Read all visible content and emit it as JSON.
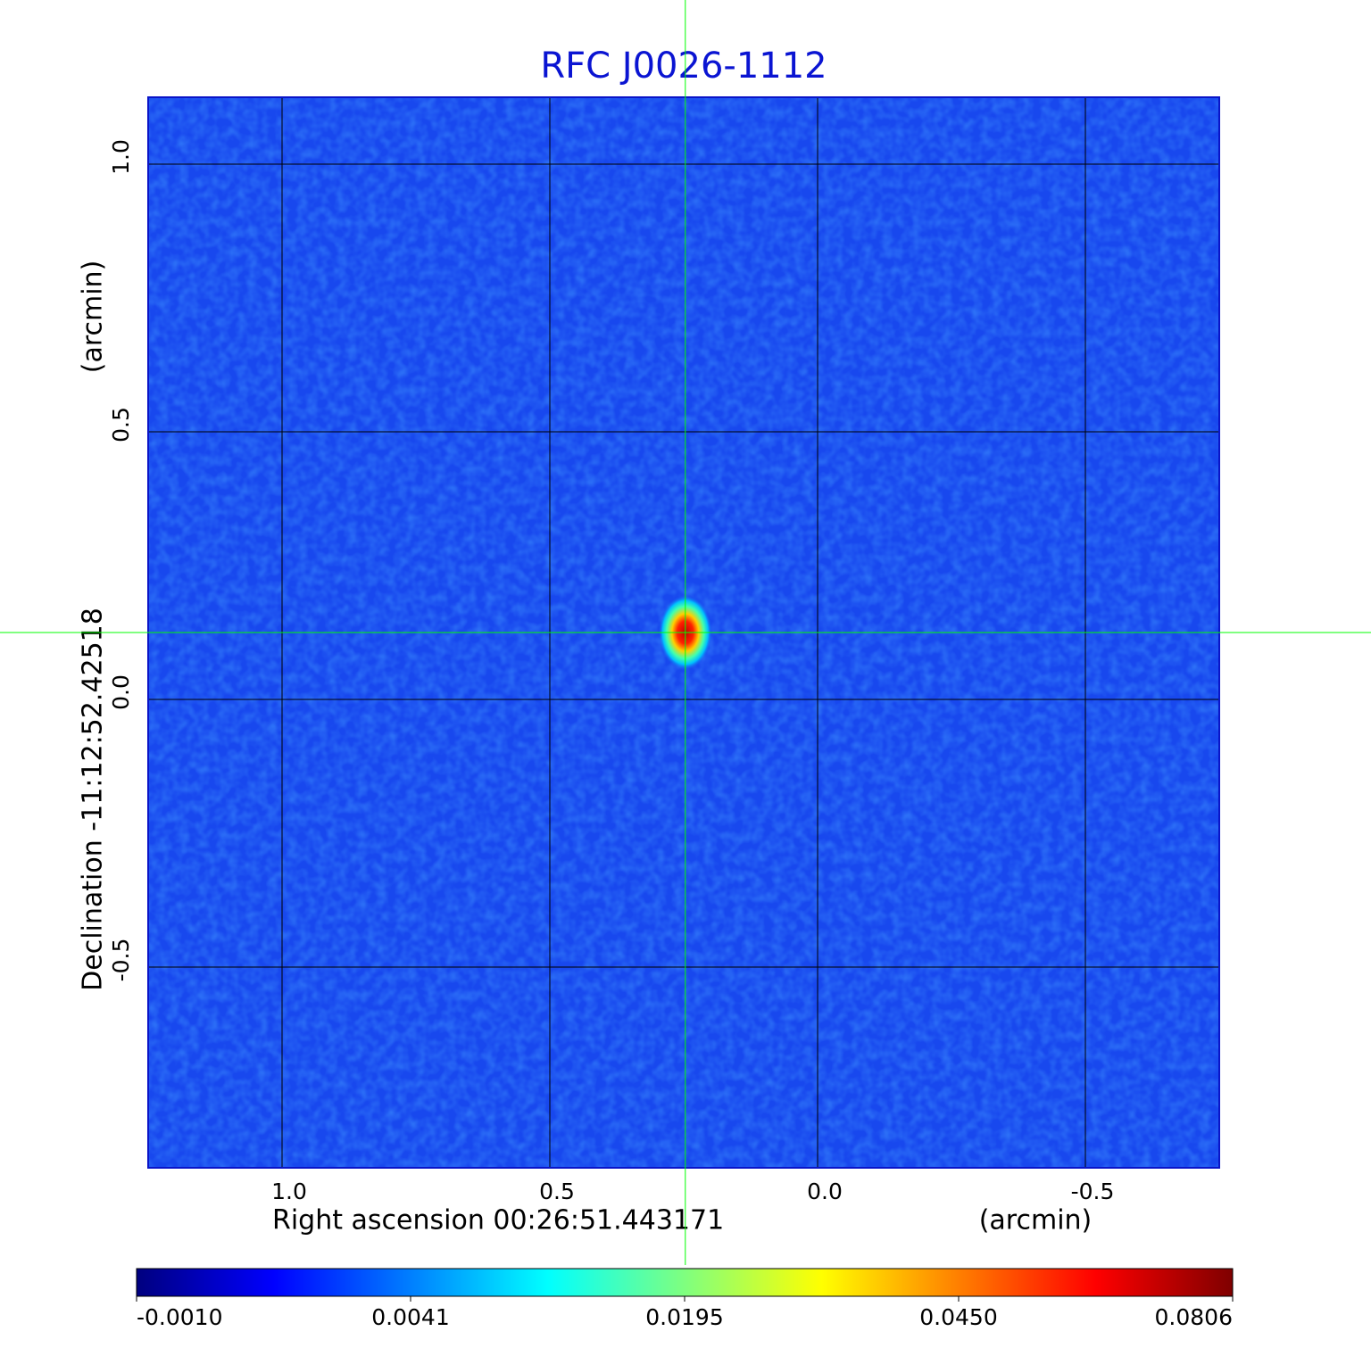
{
  "chart_data": {
    "type": "image",
    "title": "RFC J0026-1112",
    "x_label": "Right ascension  00:26:51.443171",
    "x_unit": "(arcmin)",
    "y_label": "Declination  -11:12:52.42518",
    "y_unit": "(arcmin)",
    "xlim": [
      1.25,
      -0.75
    ],
    "ylim": [
      -0.875,
      1.125
    ],
    "xticks": [
      {
        "value": 1.0,
        "label": "1.0"
      },
      0.5,
      {
        "value": 0.0,
        "label": "0.0"
      },
      -0.5
    ],
    "yticks": [
      {
        "value": 1.0,
        "label": "1.0"
      },
      0.5,
      {
        "value": 0.0,
        "label": "0.0"
      },
      -0.5
    ],
    "grid": true,
    "peak": {
      "x": 0.247,
      "y": 0.125,
      "value": 0.0806
    },
    "colormap": [
      "#00007f",
      "#0000ff",
      "#007fff",
      "#00ffff",
      "#7fff7f",
      "#ffff00",
      "#ff7f00",
      "#ff0000",
      "#7f0000"
    ],
    "colorbar_ticks": [
      {
        "value": -0.001,
        "label": "-0.0010"
      },
      {
        "value": 0.0041,
        "label": "0.0041"
      },
      {
        "value": 0.0195,
        "label": "0.0195"
      },
      {
        "value": 0.045,
        "label": "0.0450"
      },
      {
        "value": 0.0806,
        "label": "0.0806"
      }
    ]
  }
}
